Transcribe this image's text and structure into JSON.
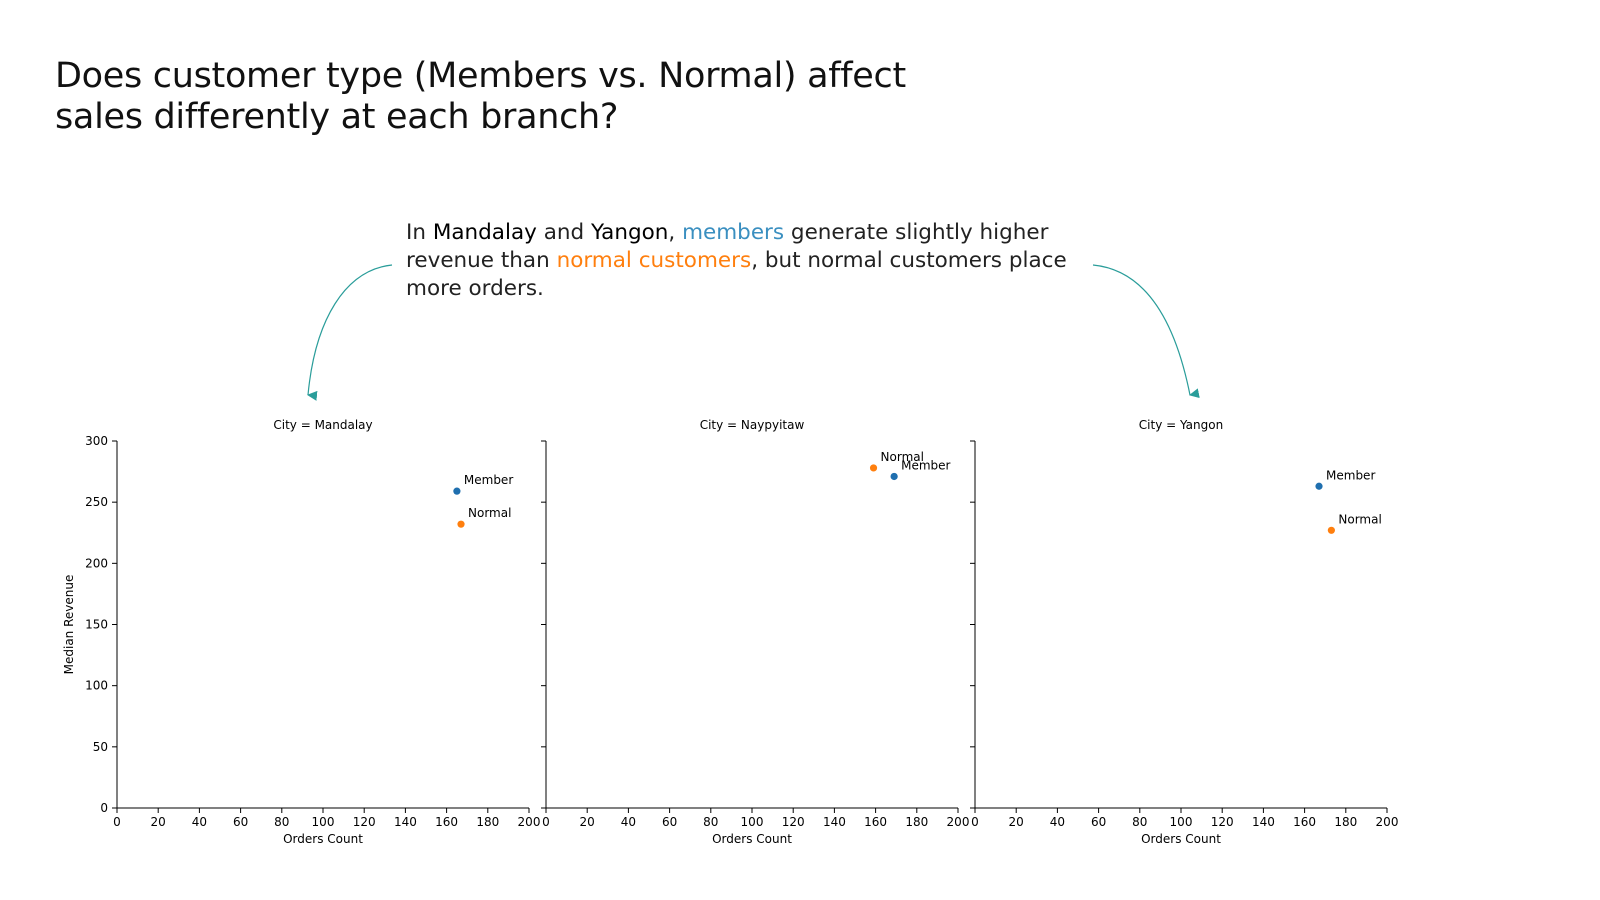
{
  "title": {
    "line1": "Does customer type (Members vs. Normal) affect",
    "line2": "sales differently at each branch?"
  },
  "annotation": {
    "l1_a": "In ",
    "l1_city1": "Mandalay",
    "l1_b": " and ",
    "l1_city2": "Yangon",
    "l1_c": ", ",
    "l1_members": "members",
    "l1_d": " generate slightly higher",
    "l2_a": "revenue than ",
    "l2_normal": "normal customers",
    "l2_b": ", but normal customers place",
    "l3": "more orders."
  },
  "colors": {
    "member": "#1f6faf",
    "normal": "#ff7f0e",
    "arrow": "#2a9d9a",
    "text_member": "#3a8fc0",
    "text_normal": "#ff7f0e"
  },
  "chart_data": [
    {
      "type": "scatter",
      "title": "City = Mandalay",
      "xlabel": "Orders Count",
      "ylabel": "Median Revenue",
      "xlim": [
        0,
        200
      ],
      "ylim": [
        0,
        300
      ],
      "xticks": [
        0,
        20,
        40,
        60,
        80,
        100,
        120,
        140,
        160,
        180,
        200
      ],
      "yticks": [
        0,
        50,
        100,
        150,
        200,
        250,
        300
      ],
      "series": [
        {
          "name": "Member",
          "x": 165,
          "y": 259
        },
        {
          "name": "Normal",
          "x": 167,
          "y": 232
        }
      ]
    },
    {
      "type": "scatter",
      "title": "City = Naypyitaw",
      "xlabel": "Orders Count",
      "ylabel": "",
      "xlim": [
        0,
        200
      ],
      "ylim": [
        0,
        300
      ],
      "xticks": [
        0,
        20,
        40,
        60,
        80,
        100,
        120,
        140,
        160,
        180,
        200
      ],
      "yticks": [
        0,
        50,
        100,
        150,
        200,
        250,
        300
      ],
      "series": [
        {
          "name": "Member",
          "x": 169,
          "y": 271
        },
        {
          "name": "Normal",
          "x": 159,
          "y": 278
        }
      ]
    },
    {
      "type": "scatter",
      "title": "City = Yangon",
      "xlabel": "Orders Count",
      "ylabel": "",
      "xlim": [
        0,
        200
      ],
      "ylim": [
        0,
        300
      ],
      "xticks": [
        0,
        20,
        40,
        60,
        80,
        100,
        120,
        140,
        160,
        180,
        200
      ],
      "yticks": [
        0,
        50,
        100,
        150,
        200,
        250,
        300
      ],
      "series": [
        {
          "name": "Member",
          "x": 167,
          "y": 263
        },
        {
          "name": "Normal",
          "x": 173,
          "y": 227
        }
      ]
    }
  ]
}
